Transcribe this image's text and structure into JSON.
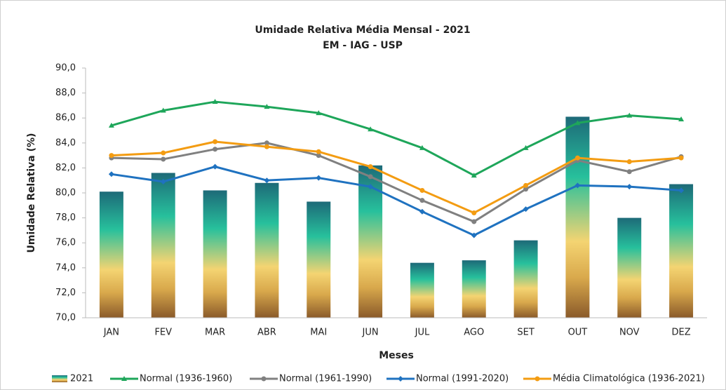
{
  "chart_data": {
    "type": "combo",
    "title": "Umidade Relativa Média Mensal - 2021",
    "subtitle": "EM - IAG - USP",
    "x_label": "Meses",
    "y_label": "Umidade Relativa (%)",
    "categories": [
      "JAN",
      "FEV",
      "MAR",
      "ABR",
      "MAI",
      "JUN",
      "JUL",
      "AGO",
      "SET",
      "OUT",
      "NOV",
      "DEZ"
    ],
    "ylim": [
      70,
      90
    ],
    "yticks": [
      {
        "value": 70,
        "label": "70,0"
      },
      {
        "value": 72,
        "label": "72,0"
      },
      {
        "value": 74,
        "label": "74,0"
      },
      {
        "value": 76,
        "label": "76,0"
      },
      {
        "value": 78,
        "label": "78,0"
      },
      {
        "value": 80,
        "label": "80,0"
      },
      {
        "value": 82,
        "label": "82,0"
      },
      {
        "value": 84,
        "label": "84,0"
      },
      {
        "value": 86,
        "label": "86,0"
      },
      {
        "value": 88,
        "label": "88,0"
      },
      {
        "value": 90,
        "label": "90,0"
      }
    ],
    "grid": false,
    "legend": "bottom",
    "series": [
      {
        "name": "2021",
        "type": "bar",
        "color": "#2bbfa0",
        "values": [
          80.1,
          81.6,
          80.2,
          80.8,
          79.3,
          82.2,
          74.4,
          74.6,
          76.2,
          86.1,
          78.0,
          80.7
        ]
      },
      {
        "name": "Normal (1936-1960)",
        "type": "line",
        "color": "#1ea65a",
        "values": [
          85.4,
          86.6,
          87.3,
          86.9,
          86.4,
          85.1,
          83.6,
          81.4,
          83.6,
          85.6,
          86.2,
          85.9
        ]
      },
      {
        "name": "Normal (1961-1990)",
        "type": "line",
        "color": "#808080",
        "values": [
          82.8,
          82.7,
          83.5,
          84.0,
          83.0,
          81.3,
          79.4,
          77.7,
          80.3,
          82.6,
          81.7,
          82.9
        ]
      },
      {
        "name": "Normal (1991-2020)",
        "type": "line",
        "color": "#1f72c0",
        "values": [
          81.5,
          80.9,
          82.1,
          81.0,
          81.2,
          80.5,
          78.5,
          76.6,
          78.7,
          80.6,
          80.5,
          80.2
        ]
      },
      {
        "name": "Média Climatológica (1936-2021)",
        "type": "line",
        "color": "#f39c12",
        "values": [
          83.0,
          83.2,
          84.1,
          83.7,
          83.3,
          82.1,
          80.2,
          78.4,
          80.6,
          82.8,
          82.5,
          82.8
        ]
      }
    ]
  }
}
